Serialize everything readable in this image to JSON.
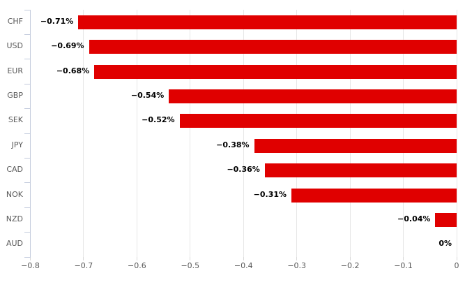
{
  "chart_data": {
    "type": "bar",
    "orientation": "horizontal",
    "title": "",
    "xlabel": "",
    "ylabel": "",
    "categories": [
      "CHF",
      "USD",
      "EUR",
      "GBP",
      "SEK",
      "JPY",
      "CAD",
      "NOK",
      "NZD",
      "AUD"
    ],
    "values": [
      -0.71,
      -0.69,
      -0.68,
      -0.54,
      -0.52,
      -0.38,
      -0.36,
      -0.31,
      -0.04,
      0
    ],
    "value_labels": [
      "−0.71%",
      "−0.69%",
      "−0.68%",
      "−0.54%",
      "−0.52%",
      "−0.38%",
      "−0.36%",
      "−0.31%",
      "−0.04%",
      "0%"
    ],
    "xlim": [
      -0.8,
      0
    ],
    "xticks": [
      -0.8,
      -0.7,
      -0.6,
      -0.5,
      -0.4,
      -0.3,
      -0.2,
      -0.1,
      0
    ],
    "xtick_labels": [
      "−0.8",
      "−0.7",
      "−0.6",
      "−0.5",
      "−0.4",
      "−0.3",
      "−0.2",
      "−0.1",
      "0"
    ],
    "grid": true,
    "legend": null,
    "colors": {
      "bar": "#e00000",
      "gridline": "#e6e6e6",
      "axis": "#c3cbdd",
      "category_label": "#595959",
      "tick_label": "#595959",
      "value_label": "#000000",
      "background": "#ffffff"
    }
  }
}
